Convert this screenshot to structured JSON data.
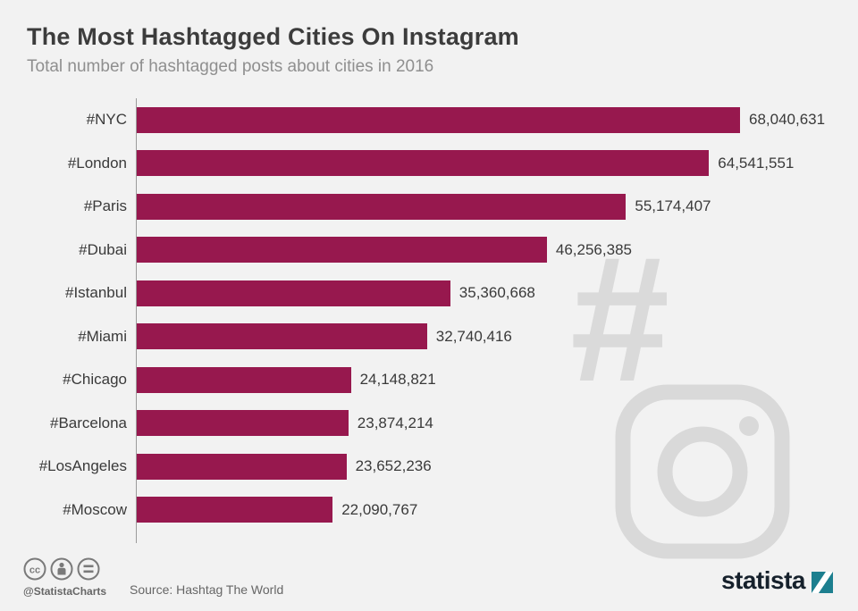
{
  "header": {
    "title": "The Most Hashtagged Cities On Instagram",
    "subtitle": "Total number of hashtagged posts about cities in 2016"
  },
  "chart_data": {
    "type": "bar",
    "orientation": "horizontal",
    "title": "The Most Hashtagged Cities On Instagram",
    "subtitle": "Total number of hashtagged posts about cities in 2016",
    "categories": [
      "#NYC",
      "#London",
      "#Paris",
      "#Dubai",
      "#Istanbul",
      "#Miami",
      "#Chicago",
      "#Barcelona",
      "#LosAngeles",
      "#Moscow"
    ],
    "values": [
      68040631,
      64541551,
      55174407,
      46256385,
      35360668,
      32740416,
      24148821,
      23874214,
      23652236,
      22090767
    ],
    "value_labels": [
      "68,040,631",
      "64,541,551",
      "55,174,407",
      "46,256,385",
      "35,360,668",
      "32,740,416",
      "24,148,821",
      "23,874,214",
      "23,652,236",
      "22,090,767"
    ],
    "xlim": [
      0,
      68040631
    ],
    "grid": false,
    "legend": "none",
    "bar_color": "#97184e"
  },
  "watermark": {
    "hash": "#"
  },
  "footer": {
    "credit": "@StatistaCharts",
    "source": "Source: Hashtag The World",
    "logo_text": "statista"
  },
  "colors": {
    "background": "#f2f2f2",
    "bar": "#97184e",
    "axis": "#9b9b9b",
    "watermark": "#d9d9d9",
    "logo_teal": "#1d7f8f"
  },
  "icons": [
    "cc-icon",
    "attribution-icon",
    "equal-icon",
    "hash-watermark-icon",
    "instagram-watermark-icon",
    "statista-logo-mark"
  ]
}
